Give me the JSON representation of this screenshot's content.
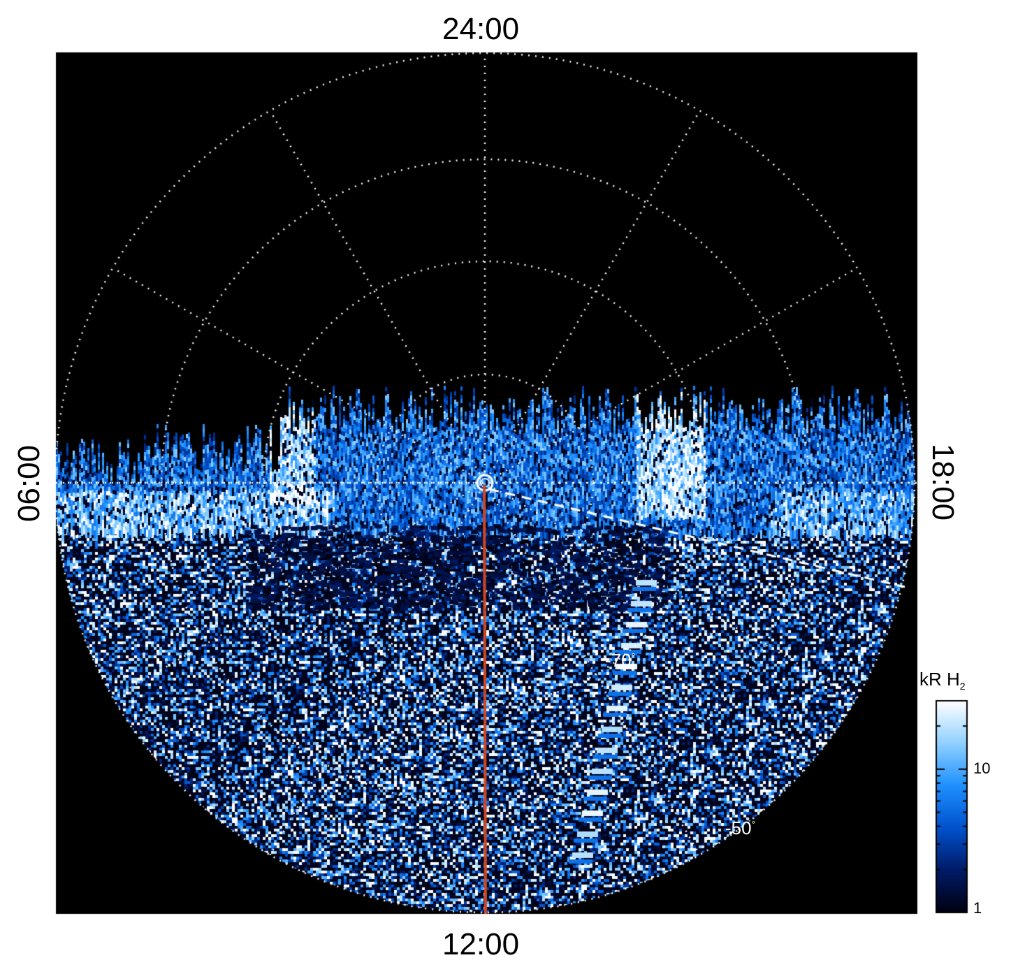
{
  "local_time_labels": {
    "top": "24:00",
    "bottom": "12:00",
    "left": "06:00",
    "right": "18:00"
  },
  "latitude_labels": {
    "inner": "-70",
    "outer": "-50",
    "degree_symbol": "°"
  },
  "colorbar": {
    "unit": "kR H",
    "unit_subscript": "2",
    "ticks": [
      "10",
      "1"
    ],
    "scale": "log",
    "range": [
      1,
      30
    ],
    "colors": [
      "#000010",
      "#001a66",
      "#0052cc",
      "#1e90ff",
      "#8fd0ff",
      "#ffffff"
    ]
  },
  "image": {
    "background_color": "#000000",
    "grid_color": "#ffffff",
    "meridian_line_color": "#d2451e",
    "grid_lines": "dotted"
  }
}
